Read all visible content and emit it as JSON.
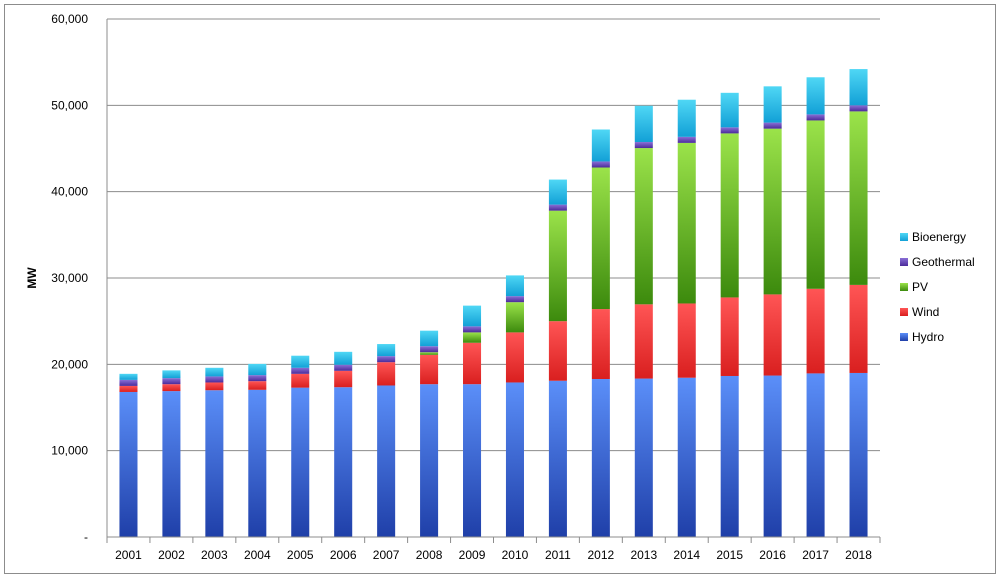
{
  "chart_data": {
    "type": "bar",
    "stacked": true,
    "title": "",
    "xlabel": "",
    "ylabel": "MW",
    "ylim": [
      0,
      60000
    ],
    "yticks": [
      0,
      10000,
      20000,
      30000,
      40000,
      50000,
      60000
    ],
    "ytick_labels": [
      "-",
      "10,000",
      "20,000",
      "30,000",
      "40,000",
      "50,000",
      "60,000"
    ],
    "grid": true,
    "legend_position": "right",
    "categories": [
      "2001",
      "2002",
      "2003",
      "2004",
      "2005",
      "2006",
      "2007",
      "2008",
      "2009",
      "2010",
      "2011",
      "2012",
      "2013",
      "2014",
      "2015",
      "2016",
      "2017",
      "2018"
    ],
    "series": [
      {
        "name": "Hydro",
        "color_top": "#5b8ff9",
        "color_bottom": "#1f3fa8",
        "values": [
          16800,
          16900,
          17000,
          17050,
          17300,
          17350,
          17550,
          17700,
          17700,
          17900,
          18100,
          18300,
          18350,
          18450,
          18650,
          18700,
          18950,
          19000
        ]
      },
      {
        "name": "Wind",
        "color_top": "#ff5555",
        "color_bottom": "#d91f1f",
        "values": [
          700,
          800,
          900,
          1000,
          1600,
          1900,
          2700,
          3400,
          4800,
          5800,
          6900,
          8100,
          8600,
          8600,
          9100,
          9400,
          9800,
          10200
        ]
      },
      {
        "name": "PV",
        "color_top": "#9be34a",
        "color_bottom": "#3c8a0d",
        "values": [
          0,
          0,
          0,
          0,
          0,
          0,
          0,
          300,
          1200,
          3500,
          12800,
          16400,
          18100,
          18600,
          19000,
          19200,
          19500,
          20100
        ]
      },
      {
        "name": "Geothermal",
        "color_top": "#8a6fd6",
        "color_bottom": "#4b2b9a",
        "values": [
          700,
          700,
          700,
          700,
          700,
          700,
          700,
          700,
          700,
          700,
          700,
          700,
          700,
          700,
          700,
          700,
          700,
          700
        ]
      },
      {
        "name": "Bioenergy",
        "color_top": "#4fd7f5",
        "color_bottom": "#12a0d6",
        "values": [
          700,
          900,
          1000,
          1300,
          1400,
          1500,
          1400,
          1800,
          2400,
          2400,
          2900,
          3700,
          4200,
          4300,
          4000,
          4200,
          4300,
          4200
        ]
      }
    ]
  }
}
